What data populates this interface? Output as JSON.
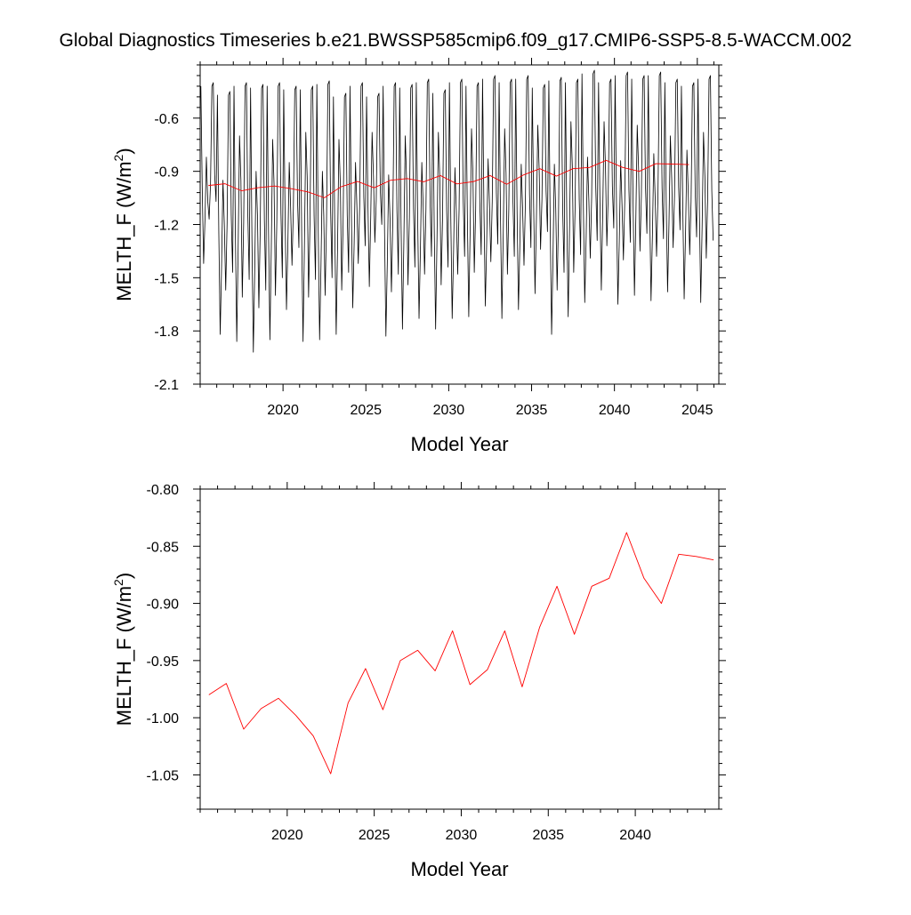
{
  "title": "Global Diagnostics Timeseries b.e21.BWSSP585cmip6.f09_g17.CMIP6-SSP5-8.5-WACCM.002",
  "colors": {
    "monthly": "#000000",
    "annual": "#ff0000",
    "axes": "#000000",
    "background": "#ffffff"
  },
  "chart_data": [
    {
      "type": "line",
      "xlabel": "Model Year",
      "ylabel": "MELTH_F (W/m²)",
      "ylabel_base": "MELTH_F (W/m",
      "ylabel_sup": "2",
      "ylabel_close": ")",
      "xlim": [
        2015.0,
        2046.3
      ],
      "ylim": [
        -2.1,
        -0.3
      ],
      "xticks": [
        2020,
        2025,
        2030,
        2035,
        2040,
        2045
      ],
      "xtick_labels": [
        "2020",
        "2025",
        "2030",
        "2035",
        "2040",
        "2045"
      ],
      "yticks": [
        -2.1,
        -1.8,
        -1.5,
        -1.2,
        -0.9,
        -0.6
      ],
      "ytick_labels": [
        "-2.1",
        "-1.8",
        "-1.5",
        "-1.2",
        "-0.9",
        "-0.6"
      ],
      "grid": false,
      "series": [
        {
          "color": "#000000",
          "monthly": true,
          "start_year": 2015,
          "months": 372,
          "annual_min": [
            -1.42,
            -1.82,
            -1.86,
            -1.92,
            -1.85,
            -1.68,
            -1.86,
            -1.85,
            -1.82,
            -1.67,
            -1.55,
            -1.83,
            -1.79,
            -1.73,
            -1.79,
            -1.73,
            -1.72,
            -1.66,
            -1.73,
            -1.68,
            -1.59,
            -1.82,
            -1.72,
            -1.64,
            -1.57,
            -1.65,
            -1.6,
            -1.63,
            -1.58,
            -1.62,
            -1.64
          ],
          "annual_max": [
            -0.42,
            -0.47,
            -0.42,
            -0.43,
            -0.42,
            -0.44,
            -0.44,
            -0.41,
            -0.48,
            -0.42,
            -0.48,
            -0.42,
            -0.43,
            -0.4,
            -0.46,
            -0.4,
            -0.42,
            -0.38,
            -0.4,
            -0.38,
            -0.43,
            -0.39,
            -0.4,
            -0.35,
            -0.4,
            -0.36,
            -0.38,
            -0.36,
            -0.4,
            -0.42,
            -0.38
          ],
          "secondary_peak": [
            -0.82,
            -0.95,
            -0.7,
            -0.9,
            -0.72,
            -0.85,
            -0.68,
            -0.9,
            -0.72,
            -0.85,
            -0.68,
            -0.92,
            -0.7,
            -0.85,
            -0.68,
            -0.88,
            -0.66,
            -0.83,
            -0.66,
            -0.86,
            -0.64,
            -0.86,
            -0.62,
            -0.82,
            -0.62,
            -0.84,
            -0.64,
            -0.8,
            -0.7,
            -0.78,
            -0.68
          ]
        },
        {
          "color": "#ff0000",
          "x": [
            2015.5,
            2016.5,
            2017.5,
            2018.5,
            2019.5,
            2020.5,
            2021.5,
            2022.5,
            2023.5,
            2024.5,
            2025.5,
            2026.5,
            2027.5,
            2028.5,
            2029.5,
            2030.5,
            2031.5,
            2032.5,
            2033.5,
            2034.5,
            2035.5,
            2036.5,
            2037.5,
            2038.5,
            2039.5,
            2040.5,
            2041.5,
            2042.5,
            2043.5,
            2044.5
          ],
          "y": [
            -0.98,
            -0.97,
            -1.01,
            -0.992,
            -0.983,
            -0.998,
            -1.016,
            -1.049,
            -0.987,
            -0.957,
            -0.993,
            -0.95,
            -0.941,
            -0.959,
            -0.924,
            -0.971,
            -0.958,
            -0.924,
            -0.973,
            -0.921,
            -0.885,
            -0.927,
            -0.885,
            -0.878,
            -0.838,
            -0.878,
            -0.9,
            -0.857,
            -0.859,
            -0.862
          ]
        }
      ]
    },
    {
      "type": "line",
      "xlabel": "Model Year",
      "ylabel": "MELTH_F (W/m²)",
      "ylabel_base": "MELTH_F (W/m",
      "ylabel_sup": "2",
      "ylabel_close": ")",
      "xlim": [
        2015.0,
        2044.8
      ],
      "ylim": [
        -1.08,
        -0.8
      ],
      "xticks": [
        2020,
        2025,
        2030,
        2035,
        2040
      ],
      "xtick_labels": [
        "2020",
        "2025",
        "2030",
        "2035",
        "2040"
      ],
      "yticks": [
        -1.05,
        -1.0,
        -0.95,
        -0.9,
        -0.85,
        -0.8
      ],
      "ytick_labels": [
        "-1.05",
        "-1.00",
        "-0.95",
        "-0.90",
        "-0.85",
        "-0.80"
      ],
      "grid": false,
      "series": [
        {
          "color": "#ff0000",
          "x": [
            2015.5,
            2016.5,
            2017.5,
            2018.5,
            2019.5,
            2020.5,
            2021.5,
            2022.5,
            2023.5,
            2024.5,
            2025.5,
            2026.5,
            2027.5,
            2028.5,
            2029.5,
            2030.5,
            2031.5,
            2032.5,
            2033.5,
            2034.5,
            2035.5,
            2036.5,
            2037.5,
            2038.5,
            2039.5,
            2040.5,
            2041.5,
            2042.5,
            2043.5,
            2044.5
          ],
          "y": [
            -0.98,
            -0.97,
            -1.01,
            -0.992,
            -0.983,
            -0.998,
            -1.016,
            -1.049,
            -0.987,
            -0.957,
            -0.993,
            -0.95,
            -0.941,
            -0.959,
            -0.924,
            -0.971,
            -0.958,
            -0.924,
            -0.973,
            -0.921,
            -0.885,
            -0.927,
            -0.885,
            -0.878,
            -0.838,
            -0.878,
            -0.9,
            -0.857,
            -0.859,
            -0.862
          ]
        }
      ]
    }
  ]
}
